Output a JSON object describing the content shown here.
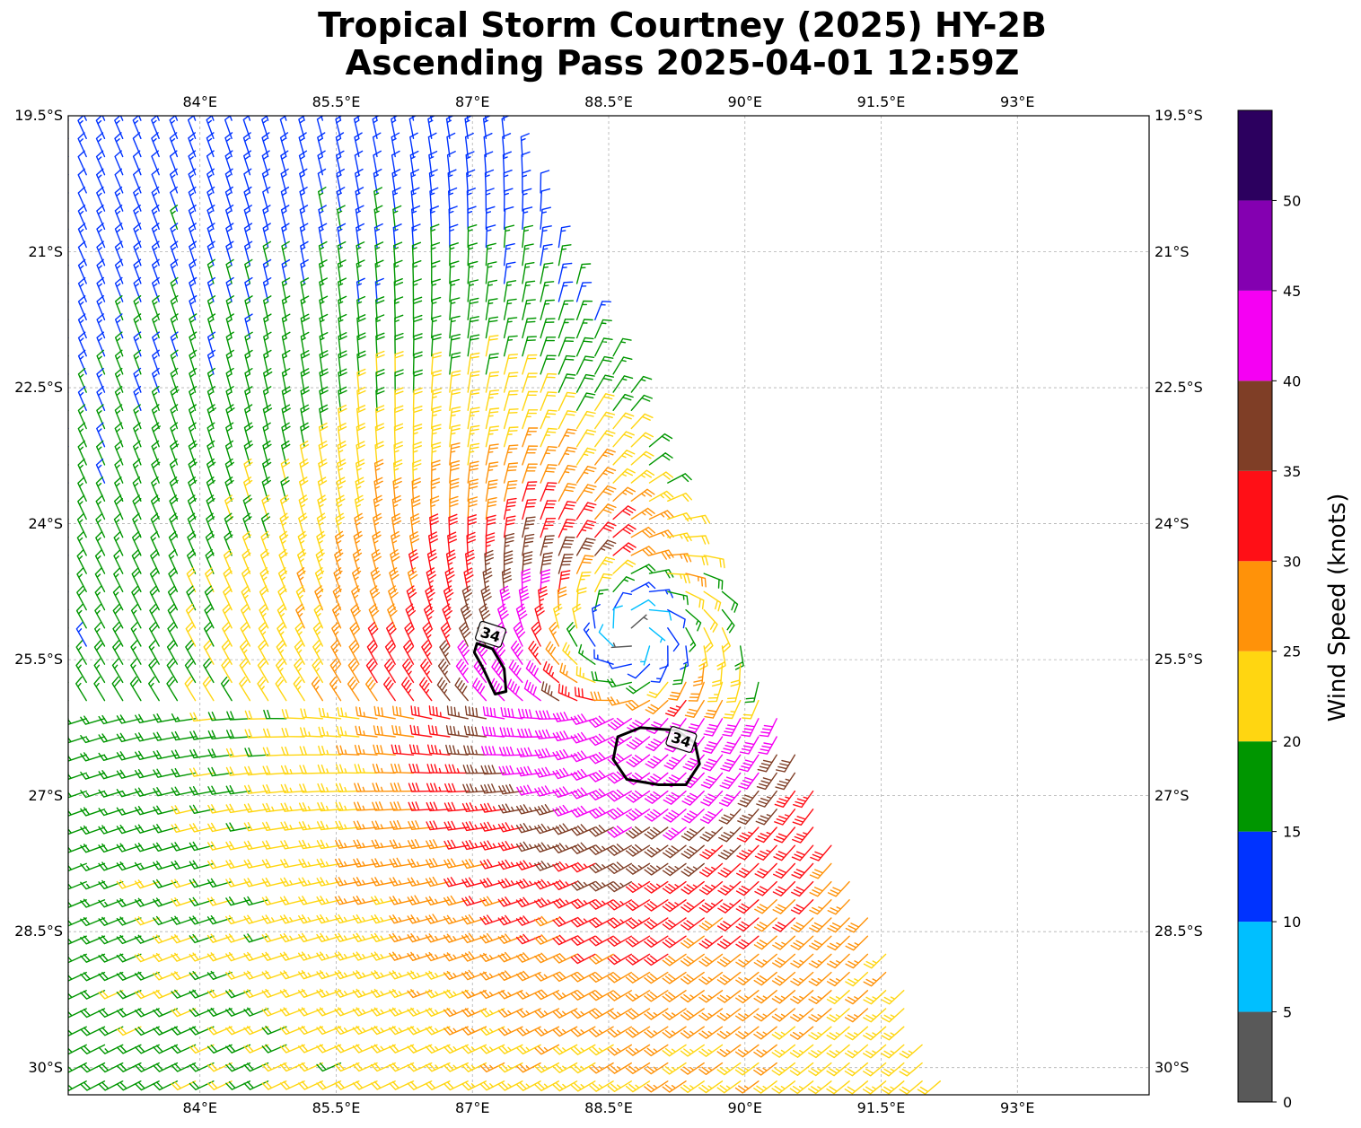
{
  "title": {
    "line1": "Tropical Storm Courtney (2025) HY-2B",
    "line2": "Ascending Pass 2025-04-01 12:59Z"
  },
  "map": {
    "lon_range": [
      82.55,
      94.45
    ],
    "lat_range": [
      -30.3,
      -19.5
    ],
    "lon_ticks": [
      {
        "value": 84,
        "label": "84°E"
      },
      {
        "value": 85.5,
        "label": "85.5°E"
      },
      {
        "value": 87,
        "label": "87°E"
      },
      {
        "value": 88.5,
        "label": "88.5°E"
      },
      {
        "value": 90,
        "label": "90°E"
      },
      {
        "value": 91.5,
        "label": "91.5°E"
      },
      {
        "value": 93,
        "label": "93°E"
      }
    ],
    "lat_ticks": [
      {
        "value": -19.5,
        "label": "19.5°S"
      },
      {
        "value": -21,
        "label": "21°S"
      },
      {
        "value": -22.5,
        "label": "22.5°S"
      },
      {
        "value": -24,
        "label": "24°S"
      },
      {
        "value": -25.5,
        "label": "25.5°S"
      },
      {
        "value": -27,
        "label": "27°S"
      },
      {
        "value": -28.5,
        "label": "28.5°S"
      },
      {
        "value": -30,
        "label": "30°S"
      }
    ],
    "gridlines": true,
    "storm_center": {
      "lon": 88.55,
      "lat": -25.3
    },
    "contours": [
      {
        "label": "34",
        "label_pos": {
          "lon": 87.2,
          "lat": -25.22
        },
        "points": [
          [
            87.05,
            -25.32
          ],
          [
            87.22,
            -25.38
          ],
          [
            87.35,
            -25.6
          ],
          [
            87.37,
            -25.85
          ],
          [
            87.25,
            -25.88
          ],
          [
            87.12,
            -25.6
          ],
          [
            87.02,
            -25.42
          ]
        ]
      },
      {
        "label": "34",
        "label_pos": {
          "lon": 89.3,
          "lat": -26.38
        },
        "points": [
          [
            88.6,
            -26.35
          ],
          [
            88.85,
            -26.25
          ],
          [
            89.25,
            -26.28
          ],
          [
            89.45,
            -26.42
          ],
          [
            89.5,
            -26.65
          ],
          [
            89.35,
            -26.88
          ],
          [
            89.05,
            -26.88
          ],
          [
            88.7,
            -26.82
          ],
          [
            88.55,
            -26.6
          ]
        ]
      }
    ]
  },
  "colorbar": {
    "label": "Wind Speed (knots)",
    "min": 0,
    "max": 55,
    "bins": [
      {
        "from": 0,
        "to": 5,
        "color": "#595959"
      },
      {
        "from": 5,
        "to": 10,
        "color": "#00bfff"
      },
      {
        "from": 10,
        "to": 15,
        "color": "#0033ff"
      },
      {
        "from": 15,
        "to": 20,
        "color": "#009600"
      },
      {
        "from": 20,
        "to": 25,
        "color": "#ffd611"
      },
      {
        "from": 25,
        "to": 30,
        "color": "#ff9209"
      },
      {
        "from": 30,
        "to": 35,
        "color": "#ff0f16"
      },
      {
        "from": 35,
        "to": 40,
        "color": "#7f3e26"
      },
      {
        "from": 40,
        "to": 45,
        "color": "#f500f3"
      },
      {
        "from": 45,
        "to": 50,
        "color": "#8400b1"
      },
      {
        "from": 50,
        "to": 55,
        "color": "#2c005f"
      }
    ],
    "ticks": [
      {
        "value": 0,
        "label": "0"
      },
      {
        "value": 5,
        "label": "5"
      },
      {
        "value": 10,
        "label": "10"
      },
      {
        "value": 15,
        "label": "15"
      },
      {
        "value": 20,
        "label": "20"
      },
      {
        "value": 25,
        "label": "25"
      },
      {
        "value": 30,
        "label": "30"
      },
      {
        "value": 35,
        "label": "35"
      },
      {
        "value": 40,
        "label": "40"
      },
      {
        "value": 45,
        "label": "45"
      },
      {
        "value": 50,
        "label": "50"
      }
    ]
  }
}
